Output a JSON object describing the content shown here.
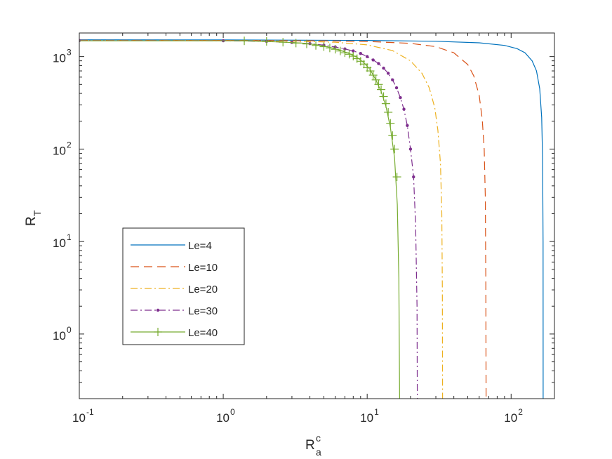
{
  "chart_data": {
    "type": "line",
    "xscale": "log",
    "yscale": "log",
    "xlim": [
      0.1,
      200
    ],
    "ylim": [
      0.2,
      1800
    ],
    "grid": false,
    "legend_position": "lower-left",
    "xlabel": {
      "main": "R",
      "sup": "c",
      "sub": "a"
    },
    "ylabel": {
      "main": "R",
      "sub": "T"
    },
    "xticks": [
      {
        "value": 0.1,
        "base": "10",
        "exp": "-1"
      },
      {
        "value": 1,
        "base": "10",
        "exp": "0"
      },
      {
        "value": 10,
        "base": "10",
        "exp": "1"
      },
      {
        "value": 100,
        "base": "10",
        "exp": "2"
      }
    ],
    "yticks": [
      {
        "value": 1,
        "base": "10",
        "exp": "0"
      },
      {
        "value": 10,
        "base": "10",
        "exp": "1"
      },
      {
        "value": 100,
        "base": "10",
        "exp": "2"
      },
      {
        "value": 1000,
        "base": "10",
        "exp": "3"
      }
    ],
    "series": [
      {
        "name": "Le=4",
        "color": "#0072BD",
        "dash": "",
        "marker": "none",
        "x": [
          0.1,
          1,
          10,
          30,
          60,
          90,
          110,
          125,
          140,
          150,
          158,
          163,
          165.5,
          166.7,
          167
        ],
        "y": [
          1520,
          1515,
          1495,
          1465,
          1410,
          1320,
          1220,
          1100,
          900,
          700,
          450,
          220,
          80,
          10,
          0.2
        ]
      },
      {
        "name": "Le=10",
        "color": "#D95319",
        "dash": "12,7",
        "marker": "none",
        "x": [
          0.1,
          1,
          5,
          10,
          20,
          30,
          40,
          50,
          55,
          60,
          63,
          65,
          66.2,
          66.7,
          67
        ],
        "y": [
          1500,
          1495,
          1480,
          1460,
          1390,
          1280,
          1100,
          820,
          620,
          380,
          210,
          100,
          30,
          4,
          0.2
        ]
      },
      {
        "name": "Le=20",
        "color": "#EDB120",
        "dash": "10,4,2,4",
        "marker": "none",
        "x": [
          0.1,
          1,
          3,
          6,
          10,
          15,
          20,
          24,
          27,
          29.5,
          31,
          32.3,
          33,
          33.3,
          33.4
        ],
        "y": [
          1495,
          1490,
          1470,
          1430,
          1340,
          1160,
          900,
          660,
          460,
          280,
          160,
          70,
          20,
          3,
          0.2
        ]
      },
      {
        "name": "Le=30",
        "color": "#7E2F8E",
        "dash": "10,4,2,4",
        "marker": "dot",
        "x": [
          0.1,
          1,
          2,
          3,
          4,
          5,
          6,
          7,
          8,
          9,
          10,
          11,
          12,
          13,
          14,
          15,
          16,
          17,
          18,
          19,
          20,
          21,
          21.7,
          22.2,
          22.3
        ],
        "y": [
          1490,
          1485,
          1460,
          1420,
          1380,
          1330,
          1270,
          1210,
          1150,
          1080,
          1000,
          920,
          840,
          750,
          660,
          560,
          460,
          360,
          270,
          180,
          100,
          50,
          15,
          2,
          0.2
        ]
      },
      {
        "name": "Le=40",
        "color": "#77AC30",
        "dash": "",
        "marker": "plus",
        "x": [
          0.1,
          1.4,
          2.5,
          3.5,
          4.5,
          5.5,
          6.5,
          7.5,
          8.5,
          9.5,
          10.5,
          11.5,
          12.5,
          13.5,
          14.5,
          15.5,
          16.2,
          16.6,
          16.8
        ],
        "y": [
          1480,
          1480,
          1440,
          1400,
          1340,
          1260,
          1170,
          1080,
          980,
          860,
          720,
          560,
          420,
          290,
          170,
          80,
          25,
          4,
          0.2
        ],
        "marker_x": [
          1.4,
          2,
          2.6,
          3.2,
          3.8,
          4.4,
          5,
          5.5,
          6,
          6.5,
          7,
          7.5,
          8,
          8.5,
          9,
          9.5,
          10,
          10.5,
          11,
          11.5,
          12,
          12.5,
          13,
          13.5,
          14,
          14.5,
          15,
          15.5,
          16.1
        ],
        "marker_y": [
          1480,
          1460,
          1430,
          1400,
          1370,
          1320,
          1280,
          1240,
          1200,
          1150,
          1100,
          1060,
          1010,
          950,
          890,
          830,
          760,
          700,
          630,
          560,
          500,
          440,
          370,
          310,
          250,
          190,
          140,
          100,
          50
        ]
      }
    ]
  }
}
